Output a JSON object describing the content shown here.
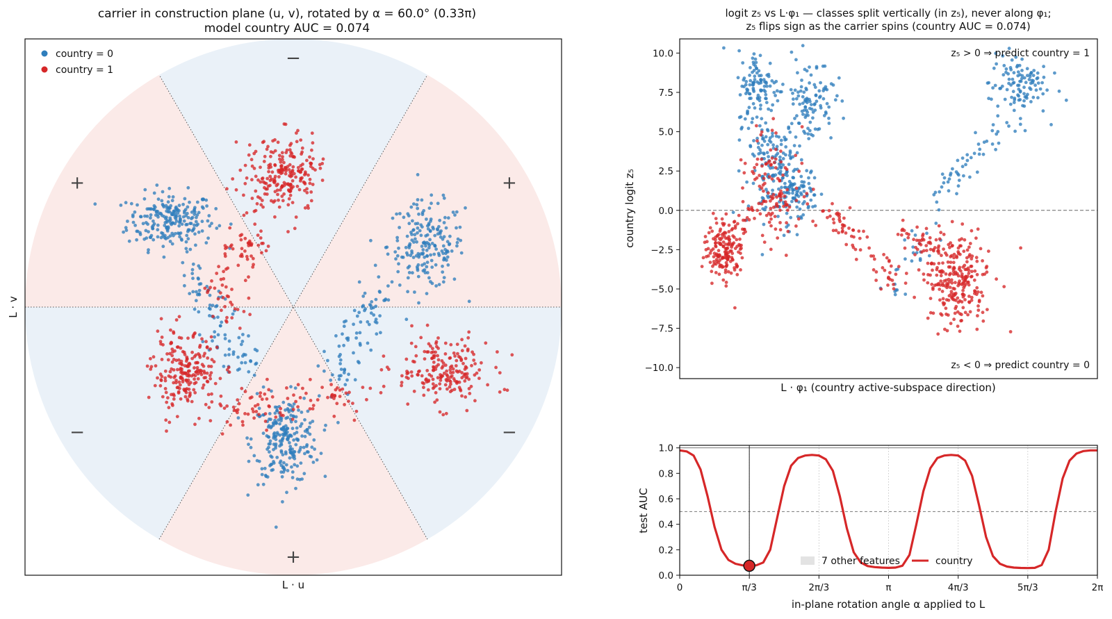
{
  "colors": {
    "class0": "#2f7ebc",
    "class1": "#d62728",
    "sector_pos": "#fbeae8",
    "sector_neg": "#eaf1f8",
    "curve": "#d62728",
    "other_band": "#e3e3e3",
    "text_pos": "#e05555",
    "text_neg": "#3d8bcf"
  },
  "chart_data": [
    {
      "type": "scatter",
      "title_line1": "carrier in construction plane (u, v), rotated by α =  60.0°  (0.33π)",
      "title_line2": "model country AUC = 0.074",
      "xlabel": "L · u",
      "ylabel": "L · v",
      "xlim": [
        -1.05,
        1.05
      ],
      "ylim": [
        -1.05,
        1.05
      ],
      "radius": 1.05,
      "sector_boundaries_deg": [
        0,
        60,
        120
      ],
      "sector_signs_top": "−",
      "sector_signs": [
        {
          "angle_deg": 90,
          "label": "−"
        },
        {
          "angle_deg": 30,
          "label": "+"
        },
        {
          "angle_deg": -30,
          "label": "−"
        },
        {
          "angle_deg": -90,
          "label": "+"
        },
        {
          "angle_deg": -150,
          "label": "−"
        },
        {
          "angle_deg": 150,
          "label": "+"
        }
      ],
      "legend": [
        {
          "label": "country = 0",
          "series": 0
        },
        {
          "label": "country = 1",
          "series": 1
        }
      ],
      "legend_position": "upper-left",
      "series": [
        {
          "name": "country = 0",
          "clusters": [
            {
              "cx": -0.48,
              "cy": 0.34,
              "sx": 0.085,
              "sy": 0.055,
              "n": 230
            },
            {
              "cx": 0.52,
              "cy": 0.24,
              "sx": 0.075,
              "sy": 0.085,
              "n": 200
            },
            {
              "cx": -0.03,
              "cy": -0.52,
              "sx": 0.065,
              "sy": 0.085,
              "n": 240
            }
          ],
          "bridges": [
            {
              "from": [
                -0.42,
                0.15
              ],
              "to": [
                -0.18,
                -0.25
              ],
              "n": 90
            },
            {
              "from": [
                0.35,
                0.1
              ],
              "to": [
                0.15,
                -0.3
              ],
              "n": 80
            }
          ]
        },
        {
          "name": "country = 1",
          "clusters": [
            {
              "cx": -0.04,
              "cy": 0.52,
              "sx": 0.07,
              "sy": 0.075,
              "n": 230
            },
            {
              "cx": 0.58,
              "cy": -0.25,
              "sx": 0.095,
              "sy": 0.065,
              "n": 200
            },
            {
              "cx": -0.42,
              "cy": -0.26,
              "sx": 0.065,
              "sy": 0.075,
              "n": 220
            }
          ],
          "bridges": [
            {
              "from": [
                -0.15,
                0.25
              ],
              "to": [
                -0.25,
                0.15
              ],
              "n": 50
            },
            {
              "from": [
                -0.3,
                -0.4
              ],
              "to": [
                0.25,
                -0.35
              ],
              "n": 90
            },
            {
              "from": [
                -0.3,
                0.1
              ],
              "to": [
                -0.25,
                -0.05
              ],
              "n": 30
            }
          ]
        }
      ]
    },
    {
      "type": "scatter",
      "title_line1": "logit z₅ vs L·φ₁ — classes split vertically (in z₅), never along φ₁;",
      "title_line2": "z₅ flips sign as the carrier spins   (country AUC = 0.074)",
      "xlabel": "L · φ₁  (country active-subspace direction)",
      "ylabel": "country logit  z₅",
      "xlim": [
        -1.0,
        1.0
      ],
      "ylim": [
        -10.7,
        10.9
      ],
      "yticks": [
        -10.0,
        -7.5,
        -5.0,
        -2.5,
        0.0,
        2.5,
        5.0,
        7.5,
        10.0
      ],
      "ytick_labels": [
        "−10.0",
        "−7.5",
        "−5.0",
        "−2.5",
        "0.0",
        "2.5",
        "5.0",
        "7.5",
        "10.0"
      ],
      "reference_line_y": 0.0,
      "annotation_pos": "z₅ > 0  ⇒  predict country = 1",
      "annotation_neg": "z₅ < 0  ⇒  predict country = 0",
      "series": [
        {
          "name": "country = 0",
          "clusters": [
            {
              "cx": -0.62,
              "cy": 7.8,
              "sx": 0.05,
              "sy": 1.2,
              "n": 110
            },
            {
              "cx": -0.38,
              "cy": 7.0,
              "sx": 0.06,
              "sy": 1.4,
              "n": 110
            },
            {
              "cx": -0.52,
              "cy": 2.0,
              "sx": 0.08,
              "sy": 1.6,
              "n": 150
            },
            {
              "cx": 0.62,
              "cy": 8.0,
              "sx": 0.07,
              "sy": 1.0,
              "n": 110
            }
          ],
          "bridges": [
            {
              "from": [
                -0.62,
                5.0
              ],
              "to": [
                -0.4,
                0.0
              ],
              "n": 80
            },
            {
              "from": [
                0.2,
                0.5
              ],
              "to": [
                0.55,
                5.5
              ],
              "n": 50
            },
            {
              "from": [
                0.0,
                -5.5
              ],
              "to": [
                0.2,
                -1.0
              ],
              "n": 25
            }
          ]
        },
        {
          "name": "country = 1",
          "clusters": [
            {
              "cx": -0.78,
              "cy": -2.8,
              "sx": 0.04,
              "sy": 1.1,
              "n": 120
            },
            {
              "cx": 0.33,
              "cy": -4.3,
              "sx": 0.08,
              "sy": 1.5,
              "n": 260
            },
            {
              "cx": -0.55,
              "cy": 1.5,
              "sx": 0.07,
              "sy": 1.9,
              "n": 120
            }
          ],
          "bridges": [
            {
              "from": [
                -0.85,
                -3.5
              ],
              "to": [
                -0.65,
                0.0
              ],
              "n": 60
            },
            {
              "from": [
                -0.3,
                0.0
              ],
              "to": [
                0.05,
                -4.5
              ],
              "n": 70
            },
            {
              "from": [
                0.05,
                -1.0
              ],
              "to": [
                0.2,
                -2.5
              ],
              "n": 30
            }
          ]
        }
      ]
    },
    {
      "type": "line",
      "xlabel": "in-plane rotation angle α applied to L",
      "ylabel": "test AUC",
      "xlim": [
        0,
        6.2832
      ],
      "ylim": [
        0,
        1.02
      ],
      "xticks": [
        0,
        1.0472,
        2.0944,
        3.1416,
        4.1888,
        5.236,
        6.2832
      ],
      "xtick_labels": [
        "0",
        "π/3",
        "2π/3",
        "π",
        "4π/3",
        "5π/3",
        "2π"
      ],
      "yticks": [
        0.0,
        0.2,
        0.4,
        0.6,
        0.8,
        1.0
      ],
      "ytick_labels": [
        "0.0",
        "0.2",
        "0.4",
        "0.6",
        "0.8",
        "1.0"
      ],
      "reference_lines_y": [
        0.5,
        1.0
      ],
      "marker": {
        "x": 1.0472,
        "y": 0.074
      },
      "legend": [
        {
          "label": "7 other features",
          "kind": "band"
        },
        {
          "label": "country",
          "kind": "line"
        }
      ],
      "legend_position": "lower-center",
      "curve": {
        "name": "country",
        "x": [
          0,
          0.105,
          0.209,
          0.314,
          0.419,
          0.524,
          0.628,
          0.733,
          0.838,
          0.942,
          1.047,
          1.152,
          1.257,
          1.361,
          1.466,
          1.571,
          1.676,
          1.78,
          1.885,
          1.99,
          2.094,
          2.199,
          2.304,
          2.409,
          2.513,
          2.618,
          2.723,
          2.827,
          2.932,
          3.037,
          3.142,
          3.246,
          3.351,
          3.456,
          3.56,
          3.665,
          3.77,
          3.875,
          3.979,
          4.084,
          4.189,
          4.294,
          4.398,
          4.503,
          4.608,
          4.712,
          4.817,
          4.922,
          5.027,
          5.131,
          5.236,
          5.341,
          5.445,
          5.55,
          5.655,
          5.76,
          5.864,
          5.969,
          6.074,
          6.178,
          6.283
        ],
        "y": [
          0.98,
          0.972,
          0.94,
          0.83,
          0.62,
          0.38,
          0.2,
          0.12,
          0.09,
          0.078,
          0.074,
          0.078,
          0.1,
          0.2,
          0.45,
          0.7,
          0.86,
          0.92,
          0.94,
          0.945,
          0.94,
          0.91,
          0.82,
          0.62,
          0.37,
          0.18,
          0.1,
          0.072,
          0.064,
          0.06,
          0.058,
          0.06,
          0.075,
          0.16,
          0.4,
          0.66,
          0.84,
          0.92,
          0.94,
          0.945,
          0.94,
          0.9,
          0.78,
          0.55,
          0.3,
          0.15,
          0.09,
          0.068,
          0.06,
          0.057,
          0.056,
          0.058,
          0.08,
          0.2,
          0.5,
          0.76,
          0.9,
          0.955,
          0.975,
          0.98,
          0.98
        ]
      }
    }
  ]
}
